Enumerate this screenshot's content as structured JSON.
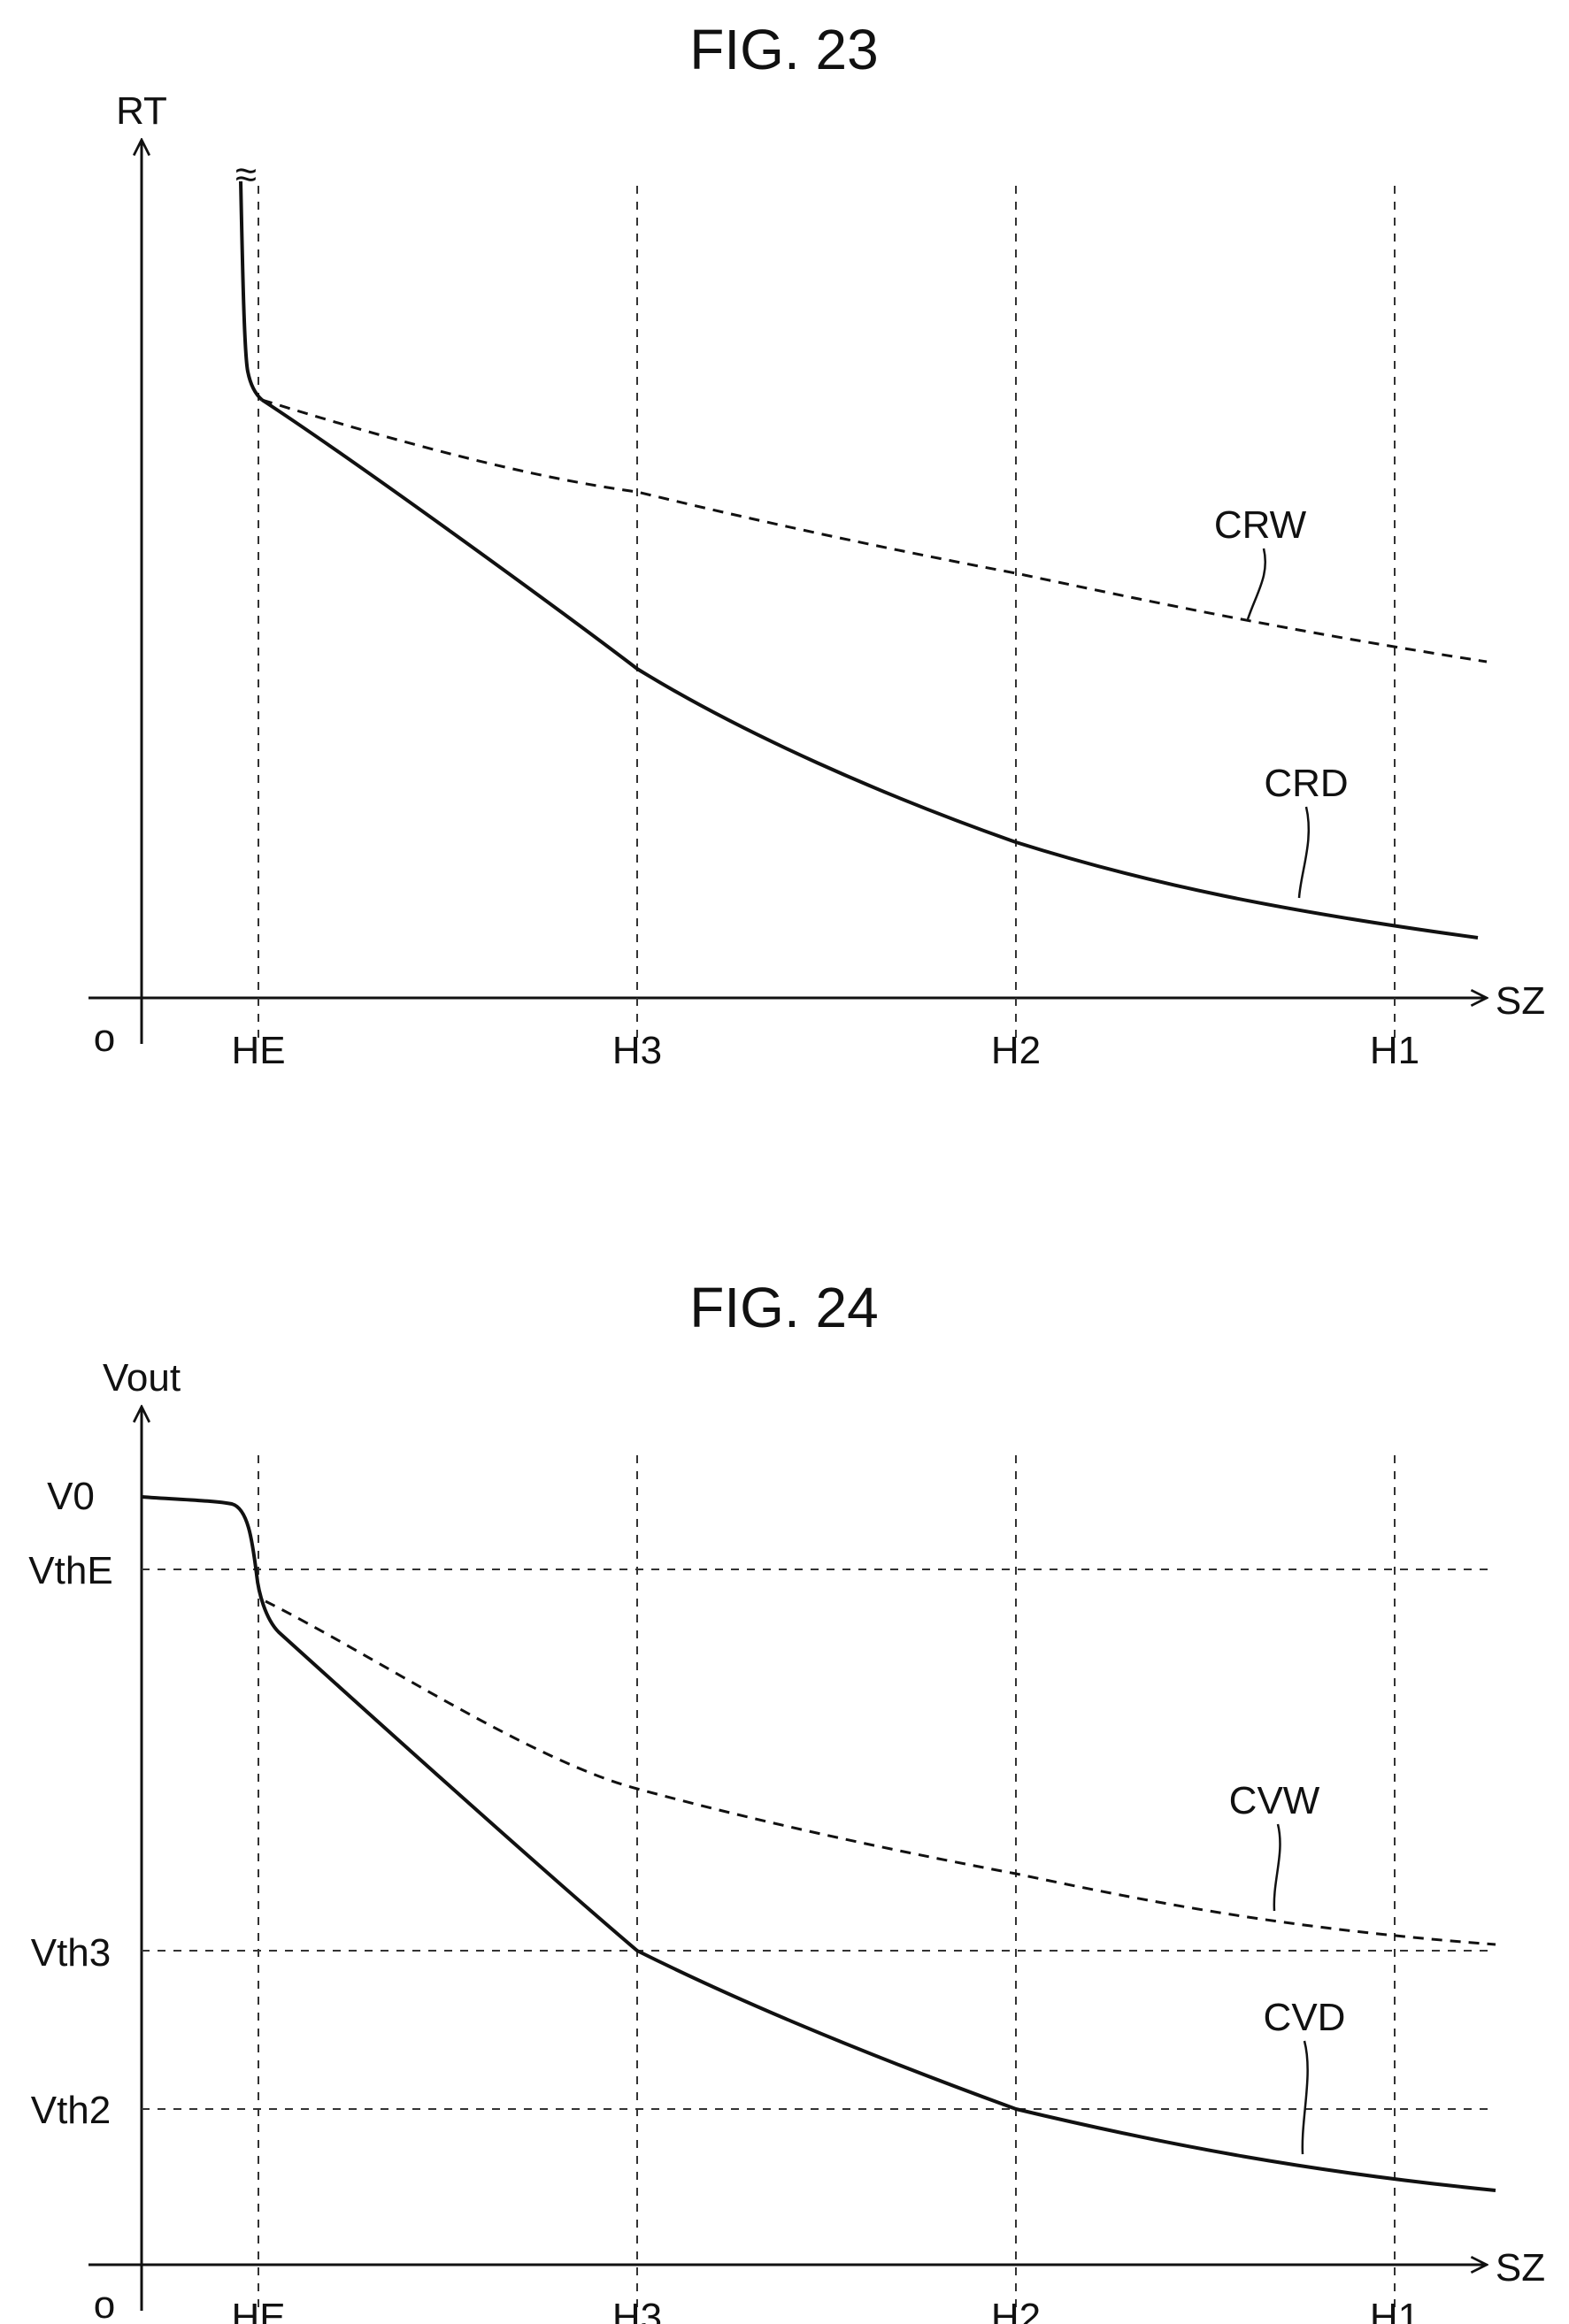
{
  "chart_data": [
    {
      "type": "line",
      "title": "FIG. 23",
      "xlabel": "SZ",
      "ylabel": "RT",
      "origin_label": "o",
      "break_mark": "≈",
      "x_ticks": [
        "HE",
        "H3",
        "H2",
        "H1"
      ],
      "y_ticks": [],
      "series": [
        {
          "name": "CRD",
          "style": "solid",
          "points": [
            [
              "HE",
              0.72
            ],
            [
              "H3",
              0.41
            ],
            [
              "H2",
              0.19
            ],
            [
              "H1",
              0.08
            ]
          ]
        },
        {
          "name": "CRW",
          "style": "dashed",
          "points": [
            [
              "HE",
              0.72
            ],
            [
              "H3",
              0.63
            ],
            [
              "H2",
              0.53
            ],
            [
              "H1",
              0.43
            ]
          ]
        }
      ]
    },
    {
      "type": "line",
      "title": "FIG. 24",
      "xlabel": "SZ",
      "ylabel": "Vout",
      "origin_label": "o",
      "x_ticks": [
        "HE",
        "H3",
        "H2",
        "H1"
      ],
      "y_ticks": [
        "V0",
        "VthE",
        "Vth3",
        "Vth2"
      ],
      "series": [
        {
          "name": "CVD",
          "style": "solid",
          "points": [
            [
              "0",
              0.94
            ],
            [
              "HE",
              0.83
            ],
            [
              "H3",
              0.39
            ],
            [
              "H2",
              0.2
            ],
            [
              "H1",
              0.1
            ]
          ]
        },
        {
          "name": "CVW",
          "style": "dashed",
          "points": [
            [
              "HE",
              0.83
            ],
            [
              "H3",
              0.6
            ],
            [
              "H2",
              0.49
            ],
            [
              "H1",
              0.42
            ]
          ]
        }
      ]
    }
  ]
}
